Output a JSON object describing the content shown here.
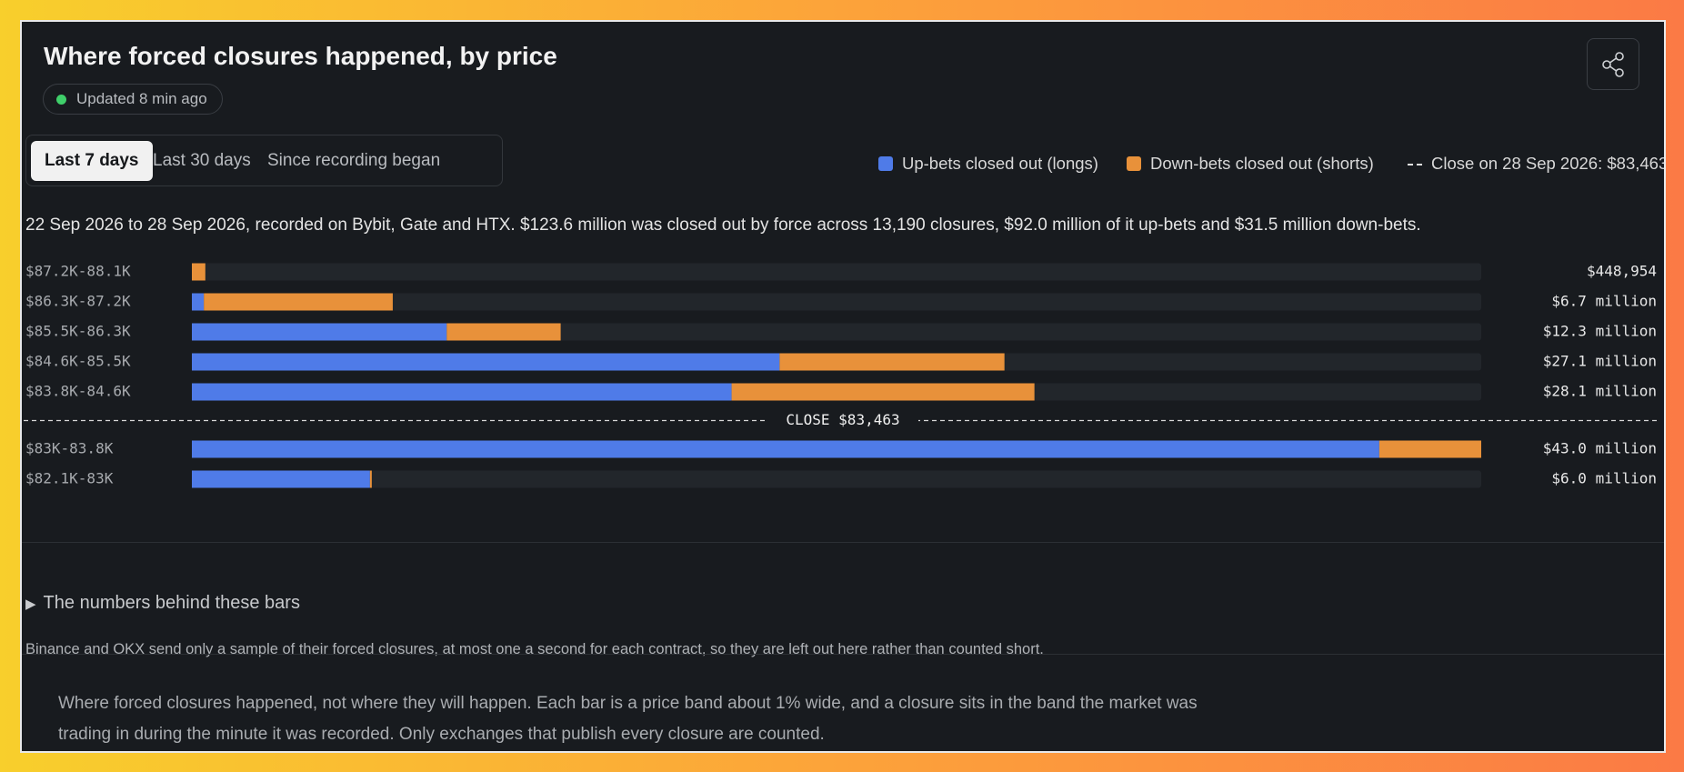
{
  "header": {
    "title": "Where forced closures happened, by price",
    "status": "Updated 8 min ago"
  },
  "tabs": [
    {
      "label": "Last 7 days",
      "selected": true
    },
    {
      "label": "Last 30 days",
      "selected": false
    },
    {
      "label": "Since recording began",
      "selected": false
    }
  ],
  "chart_data": {
    "type": "bar",
    "orientation": "horizontal",
    "stacked": true,
    "description": "22 Sep 2026 to 28 Sep 2026, recorded on Bybit, Gate and HTX. $123.6 million was closed out by force across 13,190 closures, $92.0 million of it up-bets and $31.5 million down-bets.",
    "categories": [
      "$87.2K-88.1K",
      "$86.3K-87.2K",
      "$85.5K-86.3K",
      "$84.6K-85.5K",
      "$83.8K-84.6K",
      "$83K-83.8K",
      "$82.1K-83K"
    ],
    "series": [
      {
        "name": "Up-bets closed out (longs)",
        "color": "#4f7be8",
        "values": [
          0,
          400000,
          8500000,
          19600000,
          18000000,
          39600000,
          5940000
        ]
      },
      {
        "name": "Down-bets closed out (shorts)",
        "color": "#e8913a",
        "values": [
          448954,
          6300000,
          3800000,
          7500000,
          10100000,
          3400000,
          60000
        ]
      }
    ],
    "totals": [
      448954,
      6700000,
      12300000,
      27100000,
      28100000,
      43000000,
      6000000
    ],
    "total_labels": [
      "$448,954",
      "$6.7 million",
      "$12.3 million",
      "$27.1 million",
      "$28.1 million",
      "$43.0 million",
      "$6.0 million"
    ],
    "xlim": [
      0,
      43000000
    ],
    "close_legend": "Close on 28 Sep 2026: $83,463",
    "close_label": "CLOSE $83,463"
  },
  "details": {
    "toggle": "The numbers behind these bars",
    "note": "Binance and OKX send only a sample of their forced closures, at most one a second for each contract, so they are left out here rather than counted short.",
    "paragraph": "Where forced closures happened, not where they will happen. Each bar is a price band about 1% wide, and a closure sits in the band the market was trading in during the minute it was recorded. Only exchanges that publish every closure are counted."
  }
}
